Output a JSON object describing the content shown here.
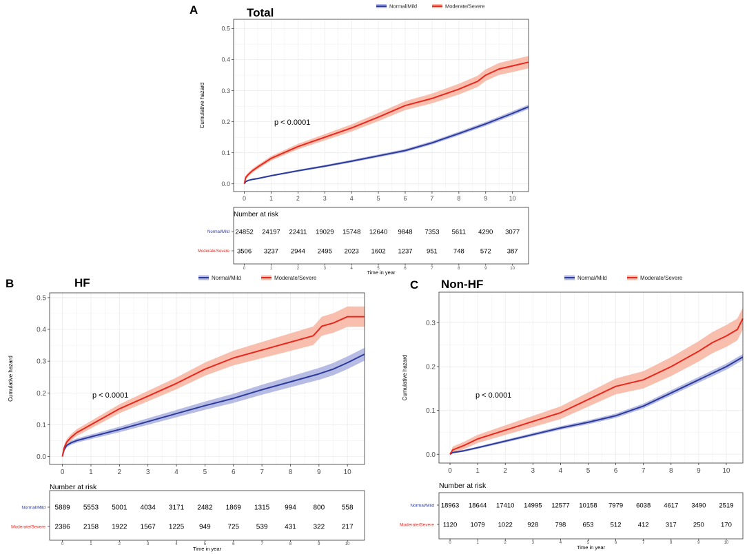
{
  "figure": {
    "panel_letters": [
      "A",
      "B",
      "C"
    ],
    "legend_labels": [
      "Normal/Mild",
      "Moderate/Severe"
    ],
    "risk_table_title": "Number at risk",
    "x_axis_label": "Time in year",
    "y_axis_label": "Cumulative hazard",
    "pvalue_text": "p < 0.0001"
  },
  "colors": {
    "normal_line": "#2c3b9a",
    "normal_band": "#aab0e0",
    "severe_line": "#e8281e",
    "severe_band": "#f8b4a0",
    "grid": "#ebebeb",
    "axis_text": "#4d4d4d"
  },
  "chart_data": [
    {
      "type": "line",
      "panel": "A",
      "title": "Total",
      "xlabel": "Time in year",
      "ylabel": "Cumulative hazard",
      "xlim": [
        -0.4,
        10.6
      ],
      "ylim": [
        -0.025,
        0.53
      ],
      "xticks": [
        0,
        1,
        2,
        3,
        4,
        5,
        6,
        7,
        8,
        9,
        10
      ],
      "yticks": [
        0.0,
        0.1,
        0.2,
        0.3,
        0.4,
        0.5
      ],
      "ytick_labels": [
        "0.0",
        "0.1",
        "0.2",
        "0.3",
        "0.4",
        "0.5"
      ],
      "annotation": "p < 0.0001",
      "series": [
        {
          "name": "Normal/Mild",
          "x": [
            0,
            0.05,
            0.15,
            0.3,
            0.5,
            1,
            2,
            3,
            4,
            5,
            6,
            7,
            8,
            9,
            10,
            10.6
          ],
          "y": [
            0,
            0.007,
            0.011,
            0.014,
            0.017,
            0.026,
            0.042,
            0.057,
            0.073,
            0.09,
            0.107,
            0.132,
            0.162,
            0.193,
            0.227,
            0.248
          ],
          "band": 0.007
        },
        {
          "name": "Moderate/Severe",
          "x": [
            0,
            0.05,
            0.15,
            0.3,
            0.5,
            1,
            2,
            3,
            4,
            5,
            6,
            7,
            8,
            8.7,
            9,
            9.5,
            10,
            10.6
          ],
          "y": [
            0,
            0.02,
            0.03,
            0.042,
            0.054,
            0.082,
            0.12,
            0.15,
            0.18,
            0.215,
            0.252,
            0.275,
            0.305,
            0.33,
            0.35,
            0.37,
            0.38,
            0.392
          ],
          "band": 0.02
        }
      ],
      "risk_table": {
        "times": [
          "0",
          "1",
          "2",
          "3",
          "4",
          "5",
          "6",
          "7",
          "8",
          "9",
          "10"
        ],
        "rows": [
          {
            "name": "Normal/Mild",
            "values": [
              "24852",
              "24197",
              "22411",
              "19029",
              "15748",
              "12640",
              "9848",
              "7353",
              "5611",
              "4290",
              "3077"
            ]
          },
          {
            "name": "Moderate/Severe",
            "values": [
              "3506",
              "3237",
              "2944",
              "2495",
              "2023",
              "1602",
              "1237",
              "951",
              "748",
              "572",
              "387"
            ]
          }
        ]
      }
    },
    {
      "type": "line",
      "panel": "B",
      "title": "HF",
      "xlabel": "Time in year",
      "ylabel": "Cumulative hazard",
      "xlim": [
        -0.45,
        10.6
      ],
      "ylim": [
        -0.025,
        0.515
      ],
      "xticks": [
        0,
        1,
        2,
        3,
        4,
        5,
        6,
        7,
        8,
        9,
        10
      ],
      "yticks": [
        0.0,
        0.1,
        0.2,
        0.3,
        0.4,
        0.5
      ],
      "ytick_labels": [
        "0.0",
        "0.1",
        "0.2",
        "0.3",
        "0.4",
        "0.5"
      ],
      "annotation": "p < 0.0001",
      "series": [
        {
          "name": "Normal/Mild",
          "x": [
            0,
            0.05,
            0.15,
            0.3,
            0.5,
            1,
            2,
            3,
            4,
            5,
            6,
            7,
            8,
            9,
            9.5,
            10,
            10.6
          ],
          "y": [
            0,
            0.02,
            0.035,
            0.043,
            0.05,
            0.062,
            0.085,
            0.11,
            0.135,
            0.16,
            0.183,
            0.21,
            0.235,
            0.26,
            0.275,
            0.295,
            0.322
          ],
          "band": 0.02
        },
        {
          "name": "Moderate/Severe",
          "x": [
            0,
            0.05,
            0.15,
            0.3,
            0.5,
            1,
            2,
            3,
            4,
            5,
            6,
            7,
            8,
            8.8,
            9.1,
            9.5,
            10,
            10.6
          ],
          "y": [
            0,
            0.025,
            0.045,
            0.06,
            0.075,
            0.1,
            0.15,
            0.19,
            0.23,
            0.275,
            0.31,
            0.335,
            0.36,
            0.38,
            0.41,
            0.42,
            0.44,
            0.44
          ],
          "band": 0.032
        }
      ],
      "risk_table": {
        "times": [
          "0",
          "1",
          "2",
          "3",
          "4",
          "5",
          "6",
          "7",
          "8",
          "9",
          "10"
        ],
        "rows": [
          {
            "name": "Normal/Mild",
            "values": [
              "5889",
              "5553",
              "5001",
              "4034",
              "3171",
              "2482",
              "1869",
              "1315",
              "994",
              "800",
              "558"
            ]
          },
          {
            "name": "Moderate/Severe",
            "values": [
              "2386",
              "2158",
              "1922",
              "1567",
              "1225",
              "949",
              "725",
              "539",
              "431",
              "322",
              "217"
            ]
          }
        ]
      }
    },
    {
      "type": "line",
      "panel": "C",
      "title": "Non-HF",
      "xlabel": "Time in year",
      "ylabel": "Cumulative hazard",
      "xlim": [
        -0.4,
        10.6
      ],
      "ylim": [
        -0.02,
        0.37
      ],
      "xticks": [
        0,
        1,
        2,
        3,
        4,
        5,
        6,
        7,
        8,
        9,
        10
      ],
      "yticks": [
        0.0,
        0.1,
        0.2,
        0.3
      ],
      "ytick_labels": [
        "0.0",
        "0.1",
        "0.2",
        "0.3"
      ],
      "annotation": "p < 0.0001",
      "series": [
        {
          "name": "Normal/Mild",
          "x": [
            0,
            0.1,
            0.5,
            1,
            2,
            3,
            4,
            5,
            6,
            7,
            8,
            9,
            10,
            10.6
          ],
          "y": [
            0,
            0.004,
            0.008,
            0.015,
            0.03,
            0.045,
            0.06,
            0.073,
            0.088,
            0.11,
            0.14,
            0.17,
            0.2,
            0.222
          ],
          "band": 0.007
        },
        {
          "name": "Moderate/Severe",
          "x": [
            0,
            0.1,
            0.5,
            1,
            2,
            3,
            4,
            5,
            6,
            7,
            8,
            9,
            9.5,
            10,
            10.4,
            10.6
          ],
          "y": [
            0,
            0.01,
            0.02,
            0.035,
            0.055,
            0.075,
            0.095,
            0.125,
            0.155,
            0.17,
            0.2,
            0.235,
            0.255,
            0.27,
            0.285,
            0.31
          ],
          "band": 0.025
        }
      ],
      "risk_table": {
        "times": [
          "0",
          "1",
          "2",
          "3",
          "4",
          "5",
          "6",
          "7",
          "8",
          "9",
          "10"
        ],
        "rows": [
          {
            "name": "Normal/Mild",
            "values": [
              "18963",
              "18644",
              "17410",
              "14995",
              "12577",
              "10158",
              "7979",
              "6038",
              "4617",
              "3490",
              "2519"
            ]
          },
          {
            "name": "Moderate/Severe",
            "values": [
              "1120",
              "1079",
              "1022",
              "928",
              "798",
              "653",
              "512",
              "412",
              "317",
              "250",
              "170"
            ]
          }
        ]
      }
    }
  ]
}
